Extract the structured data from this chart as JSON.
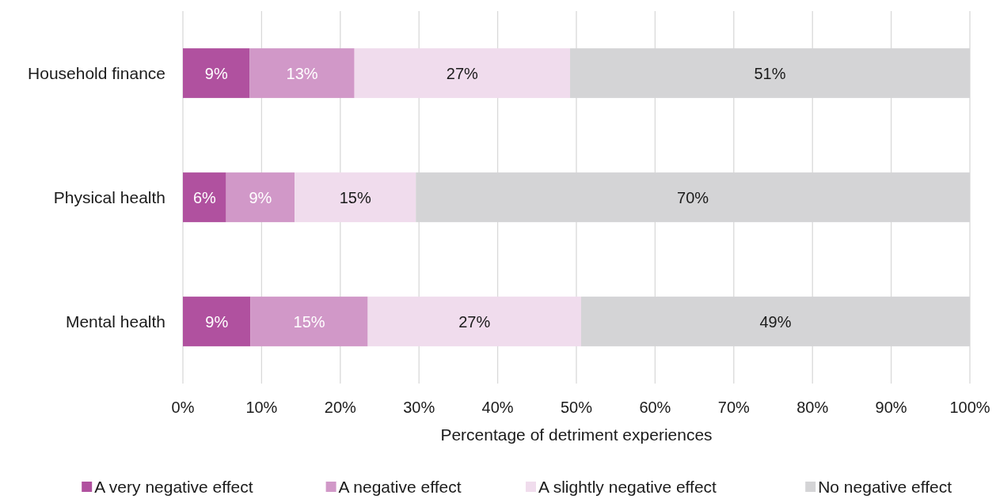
{
  "chart_data": {
    "type": "bar",
    "orientation": "horizontal",
    "stacked": true,
    "categories": [
      "Household finance",
      "Physical health",
      "Mental health"
    ],
    "series": [
      {
        "name": "A very negative effect",
        "color": "#b0519f",
        "values": [
          8.5,
          5.5,
          8.6
        ],
        "value_labels": [
          "9%",
          "6%",
          "9%"
        ]
      },
      {
        "name": "A negative effect",
        "color": "#d198c8",
        "values": [
          13.3,
          8.7,
          14.9
        ],
        "value_labels": [
          "13%",
          "9%",
          "15%"
        ]
      },
      {
        "name": "A slightly negative effect",
        "color": "#f0dced",
        "values": [
          27.4,
          15.4,
          27.1
        ],
        "value_labels": [
          "27%",
          "15%",
          "27%"
        ]
      },
      {
        "name": "No negative effect",
        "color": "#d4d4d6",
        "values": [
          50.8,
          70.4,
          49.4
        ],
        "value_labels": [
          "51%",
          "70%",
          "49%"
        ]
      }
    ],
    "xlim": [
      0,
      100
    ],
    "xticks": [
      {
        "value": 0,
        "label": "0%"
      },
      {
        "value": 10,
        "label": "10%"
      },
      {
        "value": 20,
        "label": "20%"
      },
      {
        "value": 30,
        "label": "30%"
      },
      {
        "value": 40,
        "label": "40%"
      },
      {
        "value": 50,
        "label": "50%"
      },
      {
        "value": 60,
        "label": "60%"
      },
      {
        "value": 70,
        "label": "70%"
      },
      {
        "value": 80,
        "label": "80%"
      },
      {
        "value": 90,
        "label": "90%"
      },
      {
        "value": 100,
        "label": "100%"
      }
    ],
    "xlabel": "Percentage of detriment experiences",
    "grid": "x",
    "legend": "bottom"
  }
}
